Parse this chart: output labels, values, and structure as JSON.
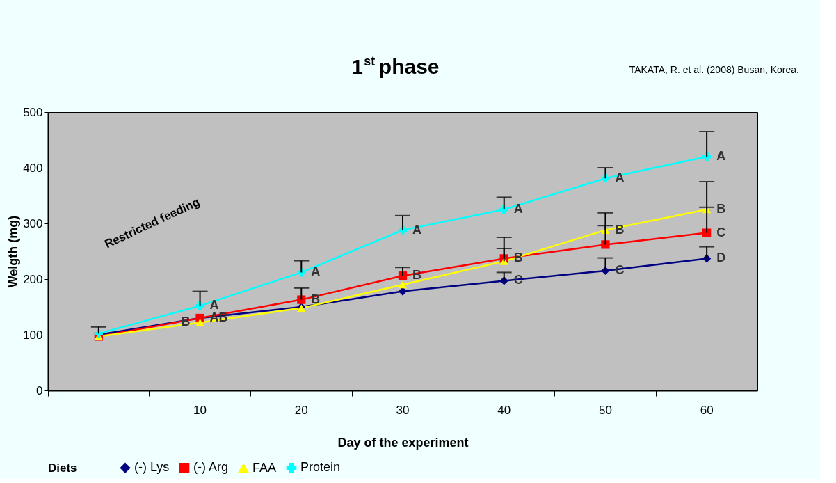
{
  "chart_data": {
    "type": "line",
    "title": "1$^{st}$ phase",
    "xlabel": "Day of the experiment",
    "ylabel": "Weigth (mg)",
    "legend_title": "Diets",
    "categories": [
      null,
      "10",
      "20",
      "30",
      "40",
      "50",
      "60"
    ],
    "series": [
      {
        "name": "(-) Lys",
        "color": "#000080",
        "marker": "diamond",
        "values": [
          100,
          130,
          150,
          178,
          197,
          215,
          237
        ],
        "errors": [
          null,
          null,
          null,
          null,
          [
            197,
            212
          ],
          [
            215,
            238
          ],
          [
            237,
            258
          ]
        ]
      },
      {
        "name": "(-) Arg",
        "color": "#ff0000",
        "marker": "square",
        "values": [
          97,
          130,
          163,
          206,
          237,
          262,
          283
        ],
        "errors": [
          null,
          null,
          [
            163,
            184
          ],
          [
            206,
            221
          ],
          [
            237,
            255
          ],
          [
            262,
            296
          ],
          [
            283,
            329
          ]
        ]
      },
      {
        "name": "FAA",
        "color": "#ffff00",
        "marker": "triangle",
        "values": [
          97,
          122,
          148,
          190,
          232,
          288,
          325
        ],
        "errors": [
          null,
          null,
          null,
          null,
          [
            232,
            275
          ],
          [
            288,
            319
          ],
          [
            325,
            375
          ]
        ]
      },
      {
        "name": "Protein",
        "color": "#00ffff",
        "marker": "cross",
        "values": [
          102,
          152,
          212,
          288,
          325,
          381,
          420
        ],
        "errors": [
          [
            102,
            114
          ],
          [
            152,
            178
          ],
          [
            212,
            233
          ],
          [
            288,
            314
          ],
          [
            325,
            347
          ],
          [
            381,
            400
          ],
          [
            420,
            465
          ]
        ]
      }
    ],
    "ylim": [
      0,
      500
    ],
    "yticks": [
      0,
      100,
      200,
      300,
      400,
      500
    ],
    "grid": false,
    "legend": "bottom",
    "line_style": "solid",
    "annotations": [
      {
        "text": "A",
        "x": "10",
        "y": 152
      },
      {
        "text": "AB",
        "x": "10",
        "y": 130
      },
      {
        "text": "B",
        "x": "10",
        "y": 122
      },
      {
        "text": "A",
        "x": "20",
        "y": 212
      },
      {
        "text": "B",
        "x": "20",
        "y": 163
      },
      {
        "text": "A",
        "x": "30",
        "y": 288
      },
      {
        "text": "B",
        "x": "30",
        "y": 206
      },
      {
        "text": "A",
        "x": "40",
        "y": 325
      },
      {
        "text": "B",
        "x": "40",
        "y": 237
      },
      {
        "text": "C",
        "x": "40",
        "y": 197
      },
      {
        "text": "A",
        "x": "50",
        "y": 381
      },
      {
        "text": "B",
        "x": "50",
        "y": 288
      },
      {
        "text": "C",
        "x": "50",
        "y": 215
      },
      {
        "text": "A",
        "x": "60",
        "y": 420
      },
      {
        "text": "B",
        "x": "60",
        "y": 325
      },
      {
        "text": "C",
        "x": "60",
        "y": 283
      },
      {
        "text": "D",
        "x": "60",
        "y": 237
      },
      "Restricted feeding",
      "TAKATA, R. et al. (2008) Busan, Korea."
    ]
  }
}
